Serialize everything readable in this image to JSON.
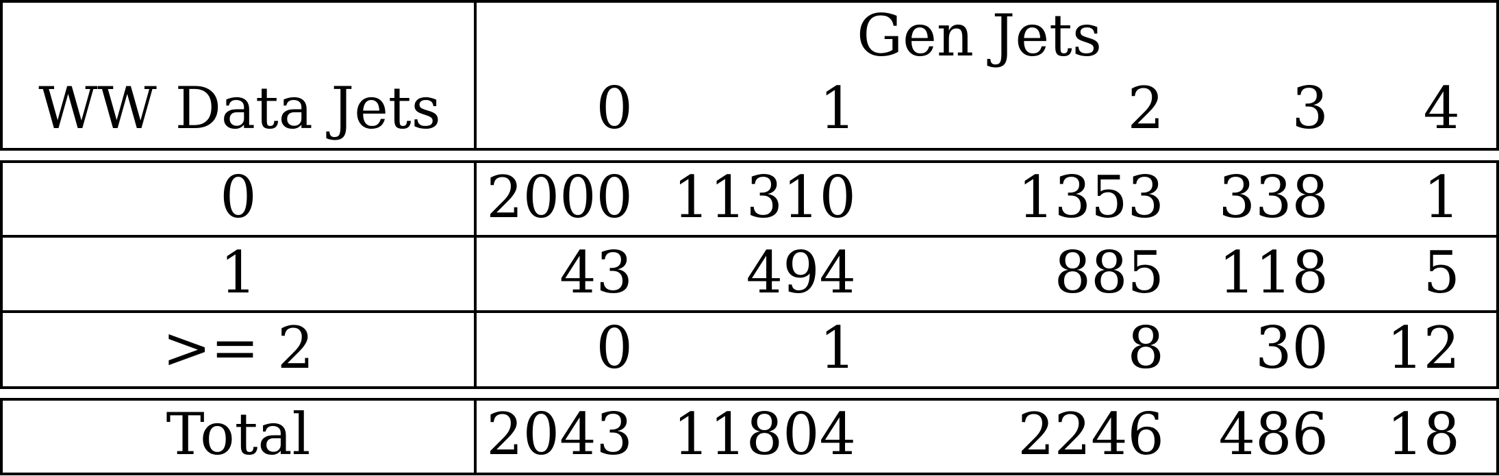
{
  "table": {
    "row_header_label": "WW Data Jets",
    "column_group_label": "Gen Jets",
    "columns": [
      "0",
      "1",
      "2",
      "3",
      "4"
    ],
    "rows": [
      {
        "label": "0",
        "values": [
          "2000",
          "11310",
          "1353",
          "338",
          "1"
        ]
      },
      {
        "label": "1",
        "values": [
          "43",
          "494",
          "885",
          "118",
          "5"
        ]
      },
      {
        "label": ">= 2",
        "values": [
          "0",
          "1",
          "8",
          "30",
          "12"
        ]
      }
    ],
    "total": {
      "label": "Total",
      "values": [
        "2043",
        "11804",
        "2246",
        "486",
        "18"
      ]
    }
  }
}
